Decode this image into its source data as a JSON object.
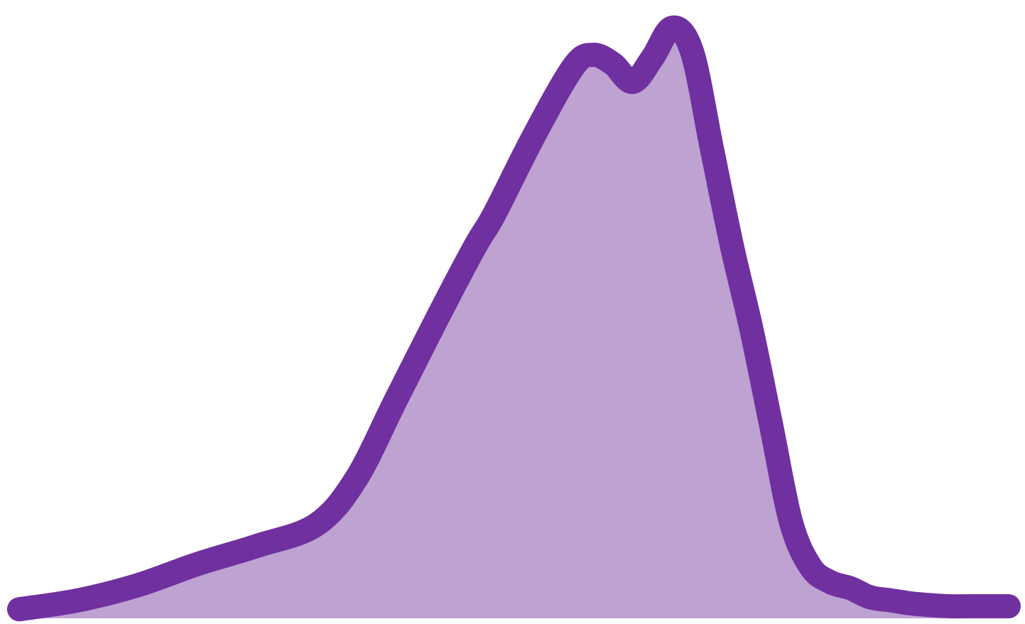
{
  "chart_data": {
    "type": "area",
    "title": "",
    "xlabel": "",
    "ylabel": "",
    "grid": false,
    "legend": "none",
    "xlim": [
      0,
      100
    ],
    "ylim": [
      0,
      100
    ],
    "series": [
      {
        "x": [
          0,
          6,
          12,
          18,
          24,
          30,
          34,
          38,
          42,
          46,
          48,
          52,
          56,
          58,
          60,
          62,
          64,
          66,
          68,
          70,
          72,
          74,
          76,
          78,
          80,
          82,
          84,
          86,
          88,
          90,
          92,
          94,
          96,
          98,
          100
        ],
        "y": [
          1.5,
          3.0,
          5.5,
          9.0,
          12.0,
          15.5,
          23.0,
          36.0,
          49.0,
          61.5,
          67.0,
          80.0,
          91.5,
          93.5,
          92.0,
          89.0,
          93.0,
          98.0,
          94.0,
          78.0,
          62.0,
          48.0,
          32.0,
          16.0,
          8.5,
          6.0,
          5.0,
          3.5,
          3.0,
          2.5,
          2.2,
          2.0,
          2.0,
          2.0,
          2.0
        ]
      }
    ],
    "colors": {
      "line": "#7030a0",
      "fill": "#bda2d2"
    }
  }
}
